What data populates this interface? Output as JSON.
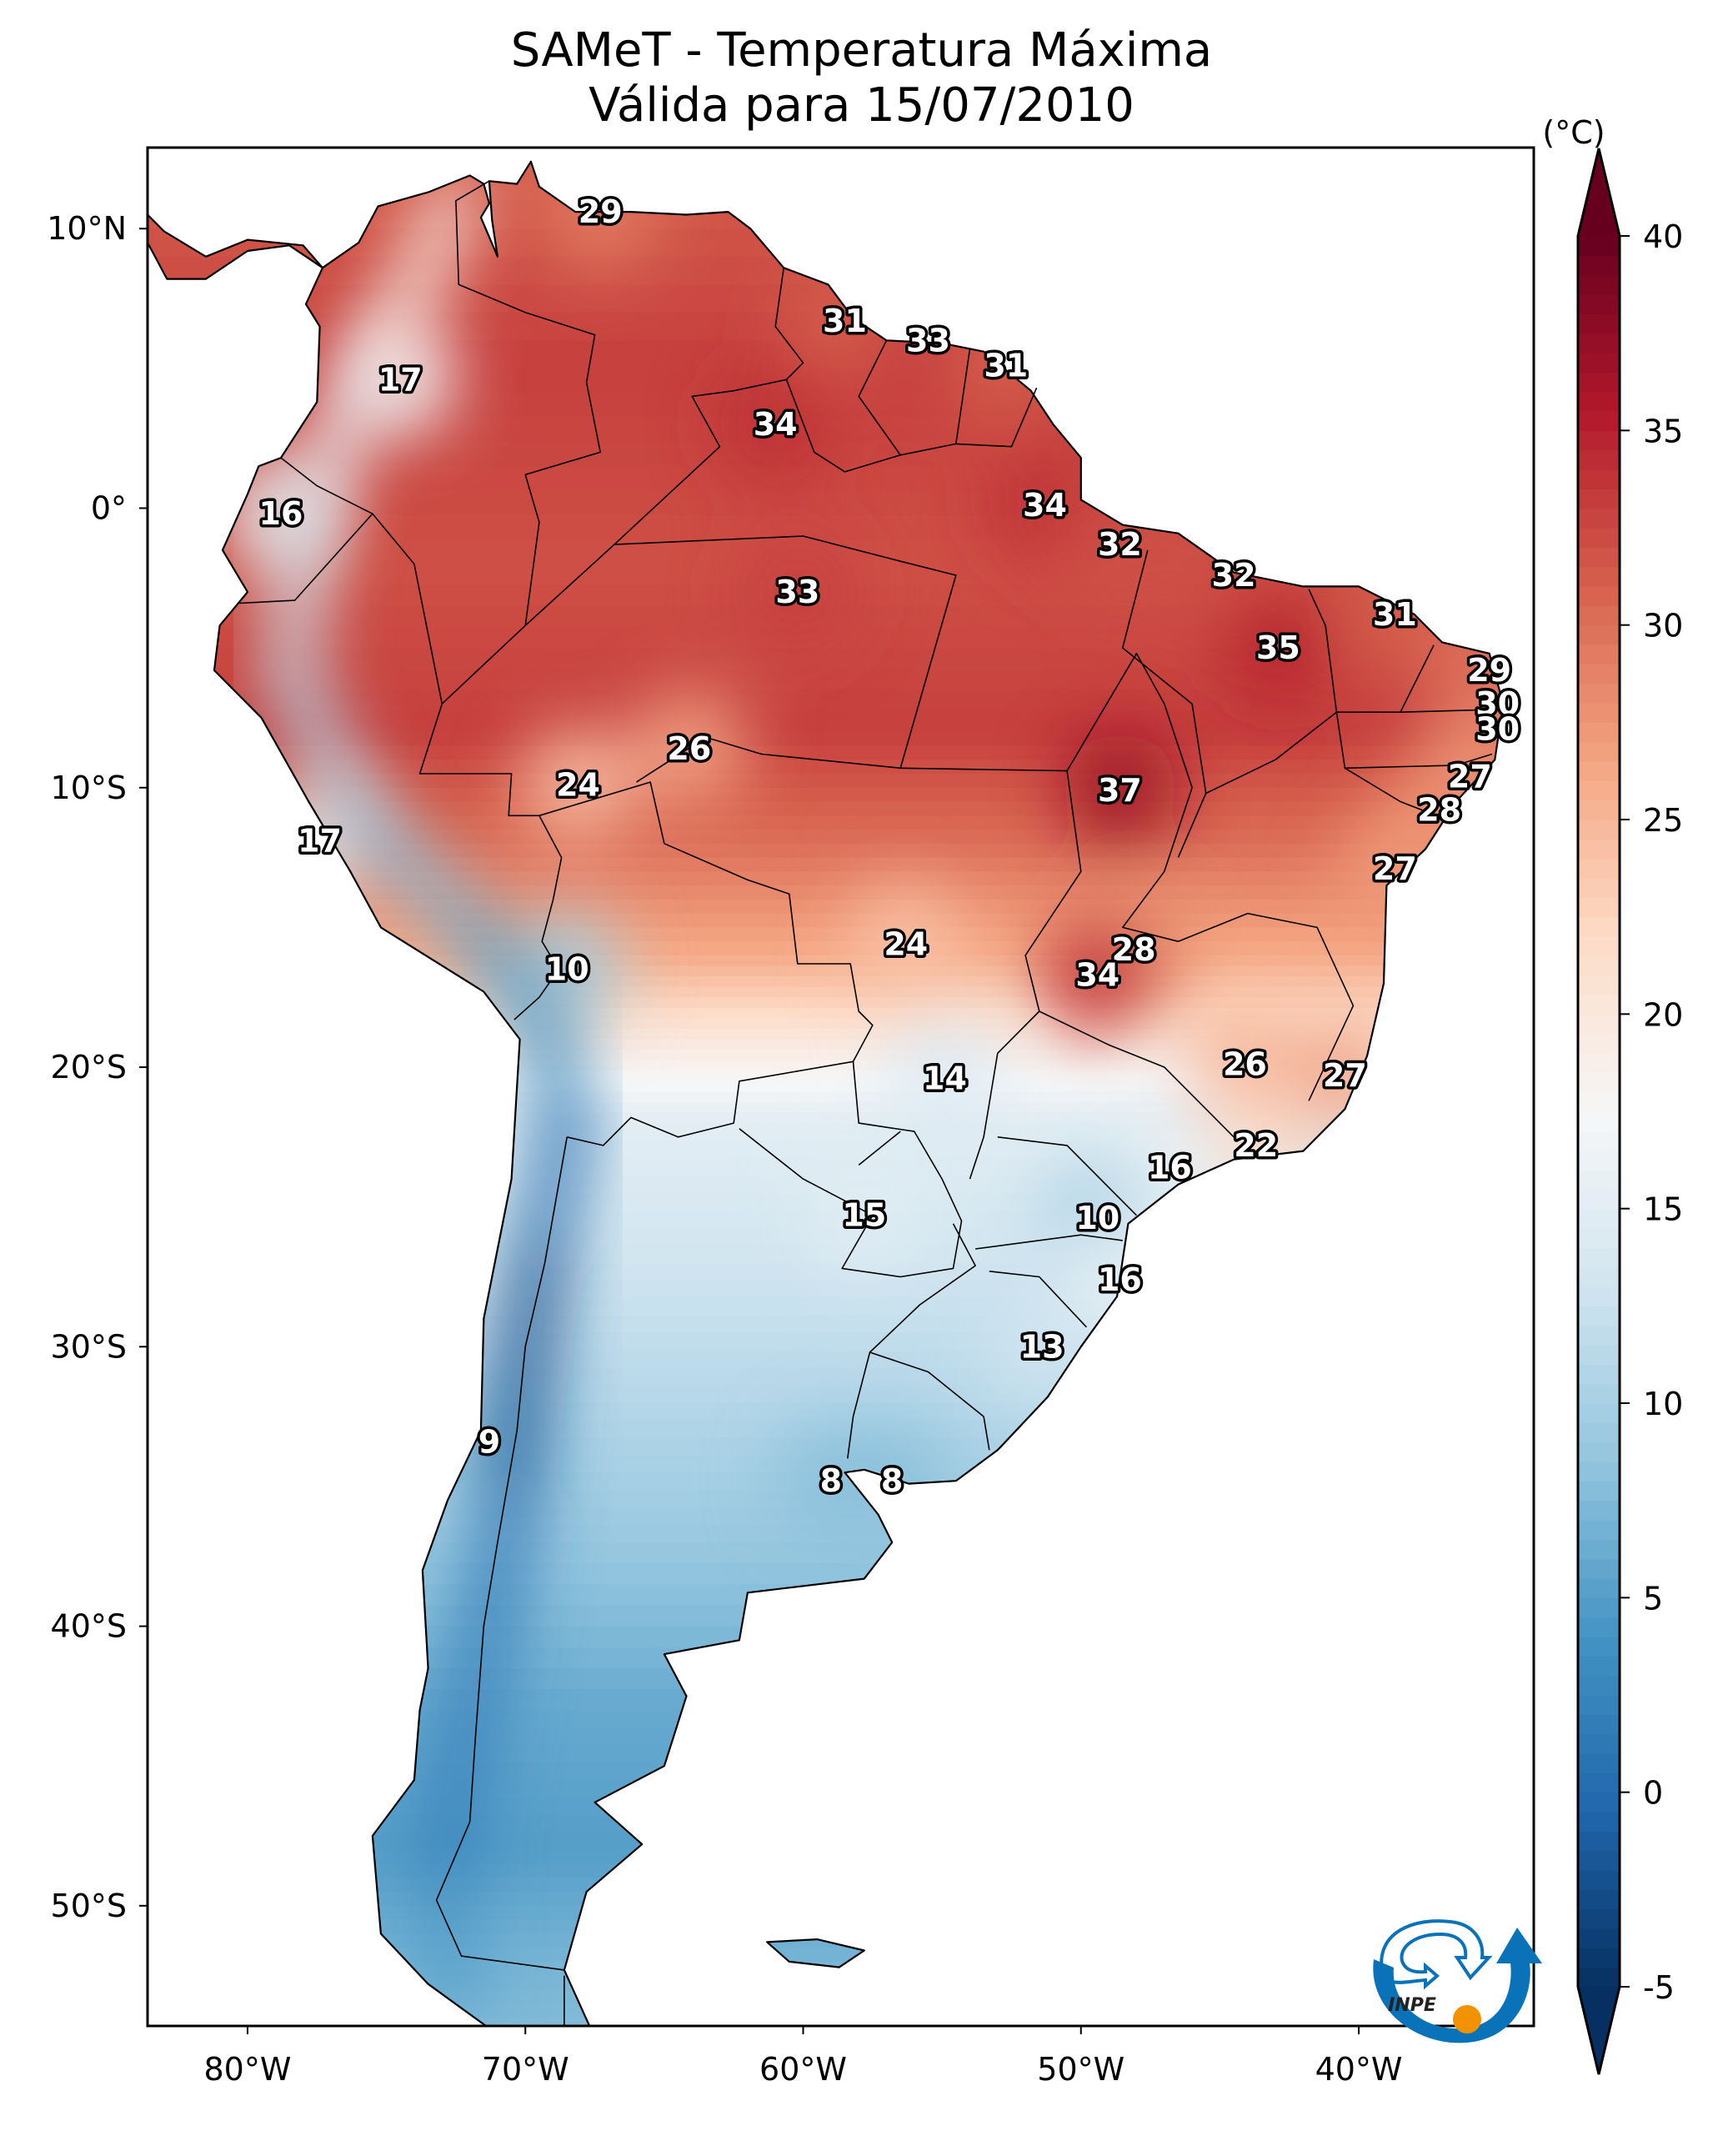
{
  "title": {
    "line1": "SAMeT - Temperatura Máxima",
    "line2": "Válida para 15/07/2010"
  },
  "chart_data": {
    "type": "heatmap",
    "subtype": "filled-contour map",
    "title": "SAMeT - Temperatura Máxima",
    "subtitle": "Válida para 15/07/2010",
    "region": "South America",
    "variable": "Maximum temperature",
    "units": "°C",
    "extent": {
      "lon": [
        -83.6,
        -33.7
      ],
      "lat": [
        -54.3,
        12.9
      ]
    },
    "x_ticks": [
      {
        "value": -80,
        "label": "80°W"
      },
      {
        "value": -70,
        "label": "70°W"
      },
      {
        "value": -60,
        "label": "60°W"
      },
      {
        "value": -50,
        "label": "50°W"
      },
      {
        "value": -40,
        "label": "40°W"
      }
    ],
    "y_ticks": [
      {
        "value": 10,
        "label": "10°N"
      },
      {
        "value": 0,
        "label": "0°"
      },
      {
        "value": -10,
        "label": "10°S"
      },
      {
        "value": -20,
        "label": "20°S"
      },
      {
        "value": -30,
        "label": "30°S"
      },
      {
        "value": -40,
        "label": "40°S"
      },
      {
        "value": -50,
        "label": "50°S"
      }
    ],
    "colorbar": {
      "label": "(°C)",
      "colormap": "RdBu_r",
      "range": [
        -5,
        40
      ],
      "extend": "both",
      "ticks": [
        {
          "value": 40,
          "label": "40"
        },
        {
          "value": 35,
          "label": "35"
        },
        {
          "value": 30,
          "label": "30"
        },
        {
          "value": 25,
          "label": "25"
        },
        {
          "value": 20,
          "label": "20"
        },
        {
          "value": 15,
          "label": "15"
        },
        {
          "value": 10,
          "label": "10"
        },
        {
          "value": 5,
          "label": "5"
        },
        {
          "value": 0,
          "label": "0"
        },
        {
          "value": -5,
          "label": "-5"
        }
      ],
      "stops": [
        "#053061",
        "#2166ac",
        "#4393c3",
        "#92c5de",
        "#d1e5f0",
        "#f7f7f7",
        "#fddbc7",
        "#f4a582",
        "#d6604d",
        "#b2182b",
        "#67001f"
      ]
    },
    "station_values": [
      {
        "lon": -67.3,
        "lat": 10.6,
        "value": 29
      },
      {
        "lon": -58.5,
        "lat": 6.7,
        "value": 31
      },
      {
        "lon": -55.5,
        "lat": 6.0,
        "value": 33
      },
      {
        "lon": -52.7,
        "lat": 5.1,
        "value": 31
      },
      {
        "lon": -74.5,
        "lat": 4.6,
        "value": 17
      },
      {
        "lon": -61.0,
        "lat": 3.0,
        "value": 34
      },
      {
        "lon": -78.8,
        "lat": -0.2,
        "value": 16
      },
      {
        "lon": -51.3,
        "lat": 0.1,
        "value": 34
      },
      {
        "lon": -48.6,
        "lat": -1.3,
        "value": 32
      },
      {
        "lon": -44.5,
        "lat": -2.4,
        "value": 32
      },
      {
        "lon": -60.2,
        "lat": -3.0,
        "value": 33
      },
      {
        "lon": -38.7,
        "lat": -3.8,
        "value": 31
      },
      {
        "lon": -42.9,
        "lat": -5.0,
        "value": 35
      },
      {
        "lon": -35.3,
        "lat": -5.8,
        "value": 29
      },
      {
        "lon": -35.0,
        "lat": -7.0,
        "value": 30
      },
      {
        "lon": -35.0,
        "lat": -7.9,
        "value": 30
      },
      {
        "lon": -64.1,
        "lat": -8.6,
        "value": 26
      },
      {
        "lon": -36.0,
        "lat": -9.6,
        "value": 27
      },
      {
        "lon": -68.1,
        "lat": -9.9,
        "value": 24
      },
      {
        "lon": -48.6,
        "lat": -10.1,
        "value": 37
      },
      {
        "lon": -37.1,
        "lat": -10.8,
        "value": 28
      },
      {
        "lon": -77.4,
        "lat": -11.9,
        "value": 17
      },
      {
        "lon": -38.7,
        "lat": -12.9,
        "value": 27
      },
      {
        "lon": -56.3,
        "lat": -15.6,
        "value": 24
      },
      {
        "lon": -48.1,
        "lat": -15.8,
        "value": 28
      },
      {
        "lon": -68.5,
        "lat": -16.5,
        "value": 10
      },
      {
        "lon": -49.4,
        "lat": -16.7,
        "value": 34
      },
      {
        "lon": -44.1,
        "lat": -19.9,
        "value": 26
      },
      {
        "lon": -40.5,
        "lat": -20.3,
        "value": 27
      },
      {
        "lon": -54.9,
        "lat": -20.4,
        "value": 14
      },
      {
        "lon": -43.7,
        "lat": -22.8,
        "value": 22
      },
      {
        "lon": -46.8,
        "lat": -23.6,
        "value": 16
      },
      {
        "lon": -57.8,
        "lat": -25.3,
        "value": 15
      },
      {
        "lon": -49.4,
        "lat": -25.4,
        "value": 10
      },
      {
        "lon": -48.6,
        "lat": -27.6,
        "value": 16
      },
      {
        "lon": -51.4,
        "lat": -30.0,
        "value": 13
      },
      {
        "lon": -71.3,
        "lat": -33.4,
        "value": 9
      },
      {
        "lon": -59.0,
        "lat": -34.8,
        "value": 8
      },
      {
        "lon": -56.8,
        "lat": -34.8,
        "value": 8
      }
    ]
  },
  "logo": {
    "text": "INPE",
    "colors": {
      "blue": "#0a72b8",
      "orange": "#f39200",
      "text": "#222222"
    }
  }
}
